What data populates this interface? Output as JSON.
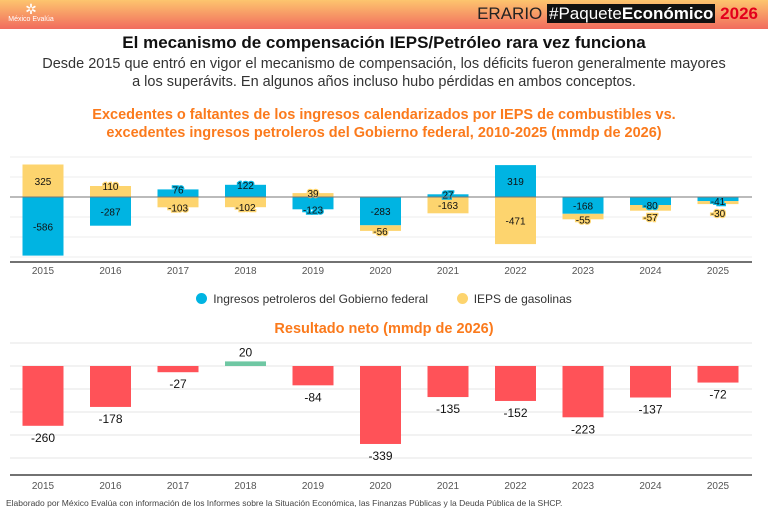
{
  "header": {
    "logo_text": "México Evalúa",
    "brand_prefix": "ERARIO",
    "hashtag_a": "#Paquete",
    "hashtag_b": "Económico",
    "year": "2026"
  },
  "title": "El mecanismo de compensación IEPS/Petróleo rara vez funciona",
  "subtitle": "Desde 2015 que entró en vigor el mecanismo de compensación, los déficits fueron generalmente mayores a los superávits. En algunos años incluso hubo pérdidas en ambos conceptos.",
  "footer": "Elaborado por México Evalúa con información de los Informes sobre la Situación Económica, las Finanzas Públicas y la Deuda Pública de la SHCP.",
  "chart_data": [
    {
      "type": "bar",
      "stacked": true,
      "title": "Excedentes o faltantes de los ingresos calendarizados por IEPS de combustibles vs. excedentes ingresos petroleros del Gobierno federal, 2010-2025 (mmdp de 2026)",
      "categories": [
        "2015",
        "2016",
        "2017",
        "2018",
        "2019",
        "2020",
        "2021",
        "2022",
        "2023",
        "2024",
        "2025"
      ],
      "series": [
        {
          "name": "Ingresos petroleros del Gobierno federal",
          "color": "#00b4e2",
          "values": [
            -586,
            -287,
            76,
            122,
            -123,
            -283,
            27,
            319,
            -168,
            -80,
            -41
          ]
        },
        {
          "name": "IEPS de gasolinas",
          "color": "#fdd46e",
          "values": [
            325,
            110,
            -103,
            -102,
            39,
            -56,
            -163,
            -471,
            -55,
            -57,
            -30
          ]
        }
      ],
      "ylim": [
        -650,
        400
      ],
      "grid": true,
      "legend": "bottom"
    },
    {
      "type": "bar",
      "title": "Resultado neto (mmdp de 2026)",
      "categories": [
        "2015",
        "2016",
        "2017",
        "2018",
        "2019",
        "2020",
        "2021",
        "2022",
        "2023",
        "2024",
        "2025"
      ],
      "values": [
        -260,
        -178,
        -27,
        20,
        -84,
        -339,
        -135,
        -152,
        -223,
        -137,
        -72
      ],
      "colors": {
        "negative": "#ff5258",
        "positive": "#6fc7a3"
      },
      "ylim": [
        -470,
        100
      ],
      "grid": true
    }
  ]
}
